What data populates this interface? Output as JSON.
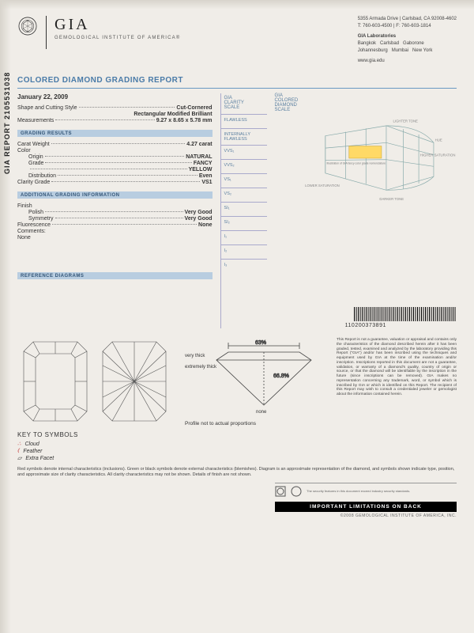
{
  "org": {
    "name": "GIA",
    "subtitle": "GEMOLOGICAL INSTITUTE OF AMERICA®"
  },
  "contact": {
    "address": "5355 Armada Drive | Carlsbad, CA 92008-4602",
    "phone": "T: 760-603-4500 | F: 760-603-1814",
    "labs_title": "GIA Laboratories",
    "labs": "Bangkok   Carlsbad   Gaborone\nJohannesburg   Mumbai   New York",
    "website": "www.gia.edu"
  },
  "report": {
    "title": "COLORED DIAMOND GRADING REPORT",
    "vertical_id": "GIA REPORT 2105531038",
    "date": "January 22, 2009",
    "shape_label": "Shape and Cutting Style",
    "shape_val": "Cut-Cornered",
    "shape_val2": "Rectangular Modified Brilliant",
    "meas_label": "Measurements",
    "meas_val": "9.27 x 8.65 x 5.78 mm"
  },
  "grading": {
    "section": "GRADING RESULTS",
    "carat_label": "Carat Weight",
    "carat_val": "4.27 carat",
    "color_label": "Color",
    "origin_label": "Origin",
    "origin_val": "NATURAL",
    "grade_label": "Grade",
    "grade_val": "FANCY",
    "grade_val2": "YELLOW",
    "dist_label": "Distribution",
    "dist_val": "Even",
    "clarity_label": "Clarity Grade",
    "clarity_val": "VS1"
  },
  "additional": {
    "section": "ADDITIONAL GRADING INFORMATION",
    "finish_label": "Finish",
    "polish_label": "Polish",
    "polish_val": "Very Good",
    "symmetry_label": "Symmetry",
    "symmetry_val": "Very Good",
    "fluor_label": "Fluorescence",
    "fluor_val": "None",
    "comments_label": "Comments:",
    "comments_val": "None"
  },
  "reference": {
    "section": "REFERENCE DIAGRAMS"
  },
  "clarity_scale": {
    "header": "GIA\nCLARITY\nSCALE",
    "items": [
      "FLAWLESS",
      "INTERNALLY FLAWLESS",
      "VVS₁",
      "VVS₂",
      "VS₁",
      "VS₂",
      "SI₁",
      "SI₂",
      "I₁",
      "I₂",
      "I₃"
    ]
  },
  "colored_scale": {
    "header": "GIA\nCOLORED\nDIAMOND\nSCALE",
    "labels": {
      "lighter": "LIGHTER TONE",
      "hue": "HUE",
      "higher_sat": "HIGHER SATURATION",
      "lower_sat": "LOWER SATURATION",
      "darker": "DARKER TONE"
    },
    "note": "Illustration of GIA fancy color grade nomenclature"
  },
  "barcode": {
    "number": "110200373891"
  },
  "profile": {
    "table_pct": "63%",
    "depth_pct": "66.8%",
    "very_thick": "very thick",
    "extremely_thick": "extremely thick",
    "none": "none",
    "caption": "Profile not to actual proportions"
  },
  "key": {
    "title": "KEY TO SYMBOLS",
    "items": [
      "Cloud",
      "Feather",
      "Extra Facet"
    ],
    "footnote": "Red symbols denote internal characteristics (inclusions). Green or black symbols denote external characteristics (blemishes). Diagram is an approximate representation of the diamond, and symbols shown indicate type, position, and approximate size of clarity characteristics. All clarity characteristics may not be shown. Details of finish are not shown."
  },
  "disclaimer": "This Report is not a guarantee, valuation or appraisal and contains only the characteristics of the diamond described herein after it has been graded, tested, examined and analyzed by the laboratory providing this Report (\"GIA\") and/or has been inscribed using the techniques and equipment used by GIA at the time of the examination and/or inscription. Inscriptions reported in this document are not a guarantee, validation, or warranty of a diamond's quality, country of origin or source, or that the diamond will be identifiable by the inscription in the future (since inscriptions can be removed). GIA makes no representation concerning any trademark, word, or symbol which is inscribed by GIA or which is identified on this Report. The recipient of this Report may wish to consult a credentialed jeweler or gemologist about the information contained herein.",
  "footer": {
    "bar": "IMPORTANT LIMITATIONS ON BACK",
    "copy": "©2008 GEMOLOGICAL INSTITUTE OF AMERICA, INC."
  },
  "colors": {
    "gia_blue": "#4a7ba8",
    "bar_blue": "#b8cde0",
    "red_sym": "#c03030",
    "green_sym": "#2a7a3a"
  }
}
